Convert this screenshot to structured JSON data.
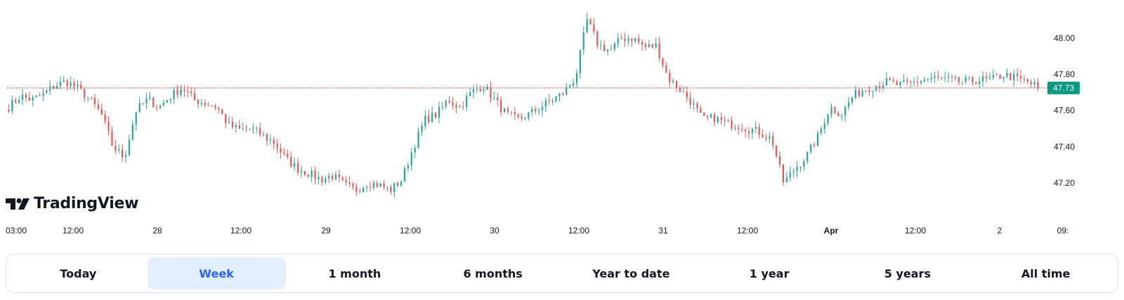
{
  "brand": {
    "name": "TradingView"
  },
  "chart_data": {
    "type": "candlestick",
    "y_axis": {
      "ticks": [
        "48.00",
        "47.80",
        "47.60",
        "47.40",
        "47.20"
      ],
      "range": [
        47.08,
        48.18
      ]
    },
    "x_axis": {
      "ticks": [
        "03:00",
        "12:00",
        "28",
        "12:00",
        "29",
        "12:00",
        "30",
        "12:00",
        "31",
        "12:00",
        "Apr",
        "12:00",
        "2",
        "09:"
      ]
    },
    "last_price": {
      "label": "47.73",
      "value": 47.725
    },
    "grid": false,
    "colors": {
      "up": "#26a69a",
      "down": "#ef5350",
      "price_line": "#ef5350",
      "label_bg": "#089981"
    },
    "price_path": [
      47.62,
      47.68,
      47.66,
      47.69,
      47.74,
      47.76,
      47.72,
      47.66,
      47.58,
      47.4,
      47.34,
      47.6,
      47.66,
      47.62,
      47.68,
      47.73,
      47.66,
      47.64,
      47.62,
      47.52,
      47.49,
      47.5,
      47.46,
      47.42,
      47.33,
      47.28,
      47.25,
      47.22,
      47.24,
      47.19,
      47.16,
      47.2,
      47.19,
      47.16,
      47.22,
      47.4,
      47.55,
      47.58,
      47.66,
      47.62,
      47.7,
      47.74,
      47.66,
      47.58,
      47.55,
      47.58,
      47.62,
      47.66,
      47.7,
      47.78,
      48.1,
      47.96,
      47.93,
      48.0,
      48.0,
      47.95,
      47.96,
      47.78,
      47.72,
      47.65,
      47.55,
      47.56,
      47.53,
      47.52,
      47.5,
      47.48,
      47.44,
      47.2,
      47.28,
      47.35,
      47.46,
      47.62,
      47.58,
      47.68,
      47.72,
      47.74,
      47.76,
      47.74,
      47.75,
      47.77,
      47.78,
      47.77,
      47.76,
      47.76,
      47.77,
      47.77,
      47.8,
      47.78,
      47.76,
      47.73
    ]
  },
  "ranges": [
    "Today",
    "Week",
    "1 month",
    "6 months",
    "Year to date",
    "1 year",
    "5 years",
    "All time"
  ],
  "active_range": "Week"
}
